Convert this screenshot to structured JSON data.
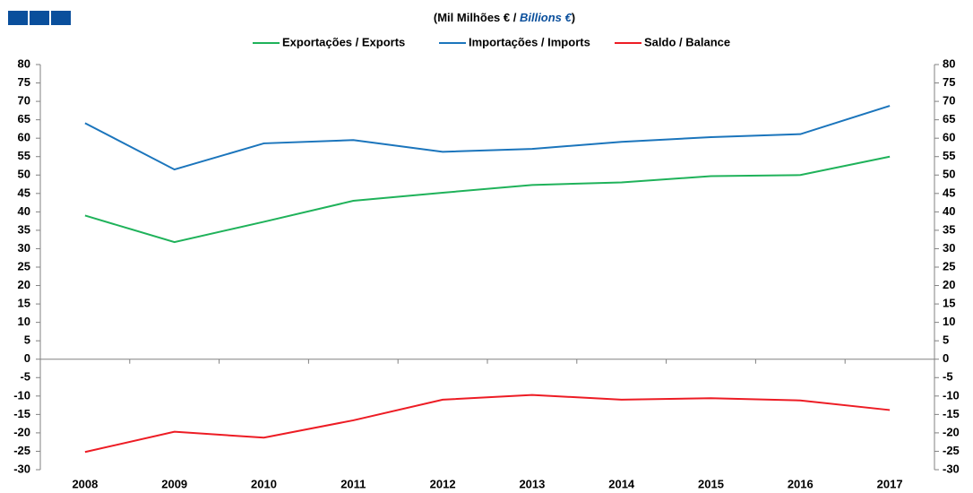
{
  "chart_data": {
    "type": "line",
    "title": {
      "text": "(Mil Milhões € / ",
      "emphasis": "Billions €",
      "close": ")"
    },
    "categories": [
      "2008",
      "2009",
      "2010",
      "2011",
      "2012",
      "2013",
      "2014",
      "2015",
      "2016",
      "2017"
    ],
    "series": [
      {
        "name": "Exportações / Exports",
        "color": "#1fb25a",
        "values": [
          39,
          31.8,
          37.3,
          43,
          45.2,
          47.3,
          48,
          49.7,
          50,
          55
        ]
      },
      {
        "name": "Importações / Imports",
        "color": "#1b75bc",
        "values": [
          64.1,
          51.5,
          58.6,
          59.5,
          56.3,
          57.1,
          59,
          60.3,
          61.1,
          68.8
        ]
      },
      {
        "name": "Saldo / Balance",
        "color": "#ed1c24",
        "values": [
          -25.2,
          -19.7,
          -21.3,
          -16.6,
          -11,
          -9.7,
          -11,
          -10.6,
          -11.2,
          -13.8
        ]
      }
    ],
    "ylim": [
      -30,
      80
    ],
    "yticks": [
      -30,
      -25,
      -20,
      -15,
      -10,
      -5,
      0,
      5,
      10,
      15,
      20,
      25,
      30,
      35,
      40,
      45,
      50,
      55,
      60,
      65,
      70,
      75,
      80
    ],
    "y2lim": [
      -30,
      80
    ],
    "y2ticks": [
      -30,
      -25,
      -20,
      -15,
      -10,
      -5,
      0,
      5,
      10,
      15,
      20,
      25,
      30,
      35,
      40,
      45,
      50,
      55,
      60,
      65,
      70,
      75,
      80
    ],
    "legend": "top",
    "grid": false
  }
}
